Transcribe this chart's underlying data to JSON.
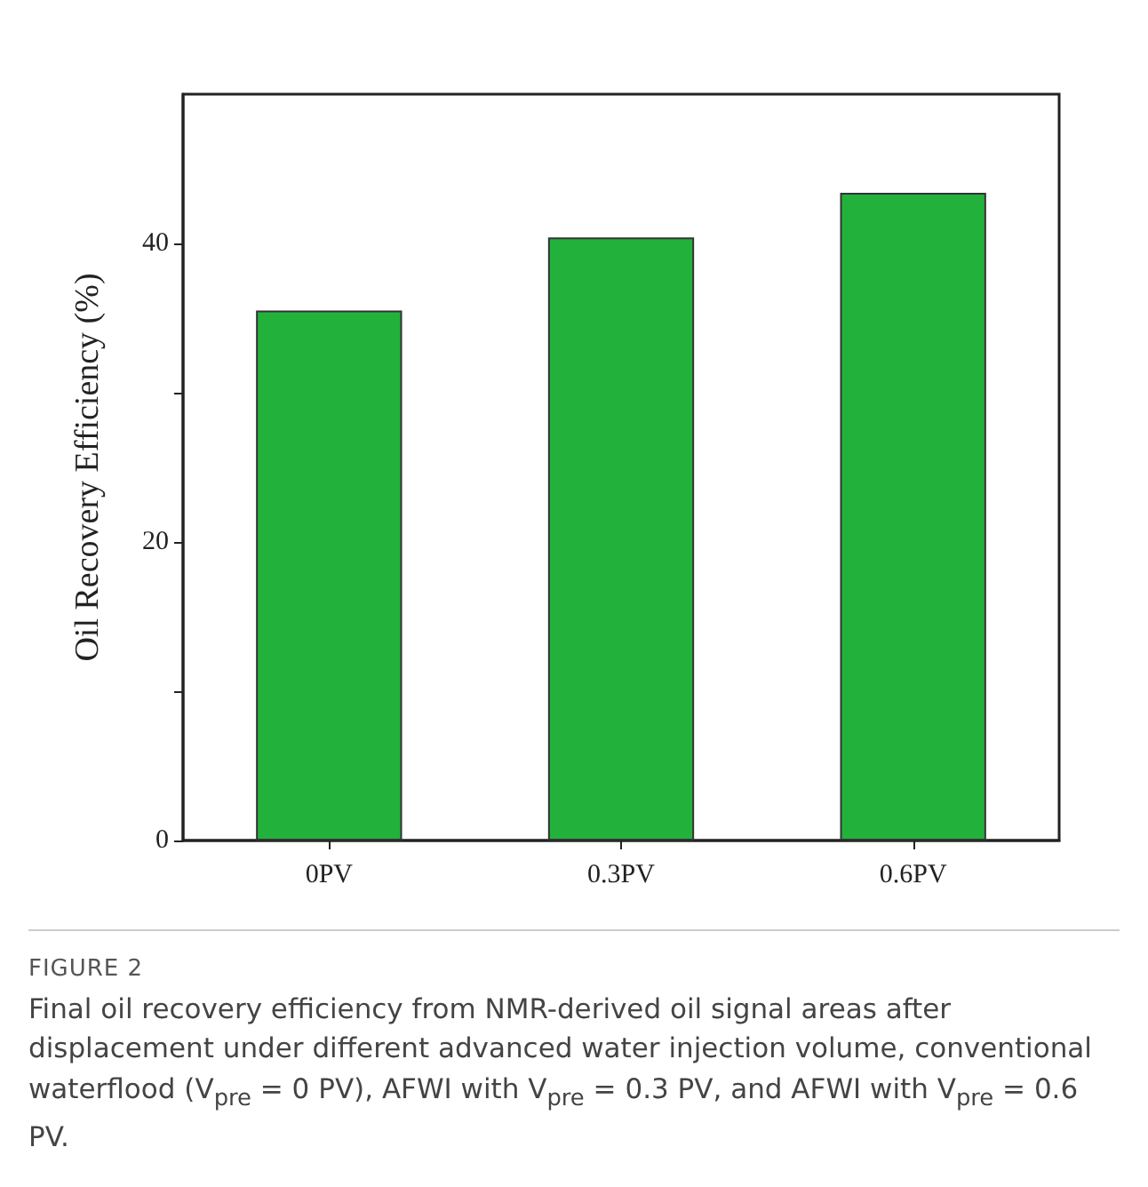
{
  "chart_data": {
    "type": "bar",
    "ylabel": "Oil Recovery Efficiency (%)",
    "categories": [
      "0PV",
      "0.3PV",
      "0.6PV"
    ],
    "values": [
      35.5,
      40.4,
      43.4
    ],
    "color": "#22b23c",
    "ylim": [
      0,
      50
    ],
    "yticks": [
      0,
      {
        "value": 10,
        "label": null
      },
      20,
      {
        "value": 30,
        "label": null
      },
      40
    ],
    "grid": false,
    "annotations": [
      "FIGURE 2",
      "Final oil recovery efficiency from NMR-derived oil signal areas after displacement under different advanced water injection volume, conventional waterflood (V$_{pre}$ = 0 PV), AFWI with V$_{pre}$ = 0.3 PV, and AFWI with V$_{pre}$ = 0.6 PV."
    ]
  }
}
